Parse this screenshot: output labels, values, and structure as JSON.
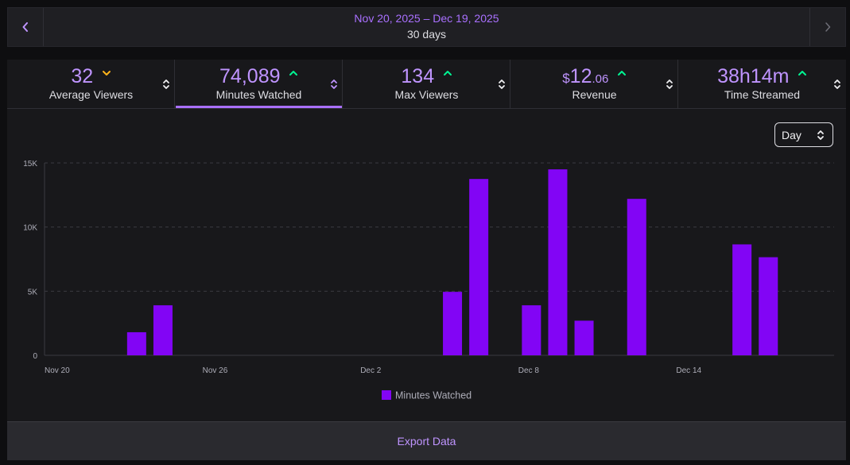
{
  "date_bar": {
    "range": "Nov 20, 2025 – Dec 19, 2025",
    "days": "30 days",
    "prev_icon": "chevron-left-icon",
    "next_icon": "chevron-right-icon"
  },
  "tabs": [
    {
      "value": "32",
      "label": "Average Viewers",
      "trend": "down",
      "active": false
    },
    {
      "value": "74,089",
      "label": "Minutes Watched",
      "trend": "up",
      "active": true
    },
    {
      "value": "134",
      "label": "Max Viewers",
      "trend": "up",
      "active": false
    },
    {
      "value_currency": "$",
      "value_main": "12",
      "value_cents": ".06",
      "label": "Revenue",
      "trend": "up",
      "active": false
    },
    {
      "value": "38h14m",
      "label": "Time Streamed",
      "trend": "up",
      "active": false
    }
  ],
  "colors": {
    "accent": "#a970ff",
    "bar": "#8205f5",
    "trend_up": "#00f593",
    "trend_down": "#ffb31a"
  },
  "interval_select": {
    "value": "Day"
  },
  "chart_data": {
    "type": "bar",
    "title": "",
    "xlabel": "",
    "ylabel": "",
    "ylim": [
      0,
      15000
    ],
    "y_ticks": [
      0,
      5000,
      10000,
      15000
    ],
    "y_tick_labels": [
      "0",
      "5K",
      "10K",
      "15K"
    ],
    "x_tick_labels": [
      "Nov 20",
      "Nov 26",
      "Dec 2",
      "Dec 8",
      "Dec 14"
    ],
    "x_tick_index": [
      0,
      6,
      12,
      18,
      24
    ],
    "categories": [
      "Nov 20",
      "Nov 21",
      "Nov 22",
      "Nov 23",
      "Nov 24",
      "Nov 25",
      "Nov 26",
      "Nov 27",
      "Nov 28",
      "Nov 29",
      "Nov 30",
      "Dec 1",
      "Dec 2",
      "Dec 3",
      "Dec 4",
      "Dec 5",
      "Dec 6",
      "Dec 7",
      "Dec 8",
      "Dec 9",
      "Dec 10",
      "Dec 11",
      "Dec 12",
      "Dec 13",
      "Dec 14",
      "Dec 15",
      "Dec 16",
      "Dec 17",
      "Dec 18",
      "Dec 19"
    ],
    "series": [
      {
        "name": "Minutes Watched",
        "values": [
          0,
          0,
          0,
          1800,
          3900,
          0,
          0,
          0,
          0,
          0,
          0,
          0,
          0,
          0,
          0,
          4950,
          13750,
          0,
          3900,
          14500,
          2700,
          0,
          12200,
          0,
          0,
          0,
          8650,
          7650,
          0,
          0
        ]
      }
    ],
    "legend": {
      "label": "Minutes Watched",
      "position": "bottom"
    },
    "grid": true
  },
  "export": {
    "label": "Export Data"
  }
}
